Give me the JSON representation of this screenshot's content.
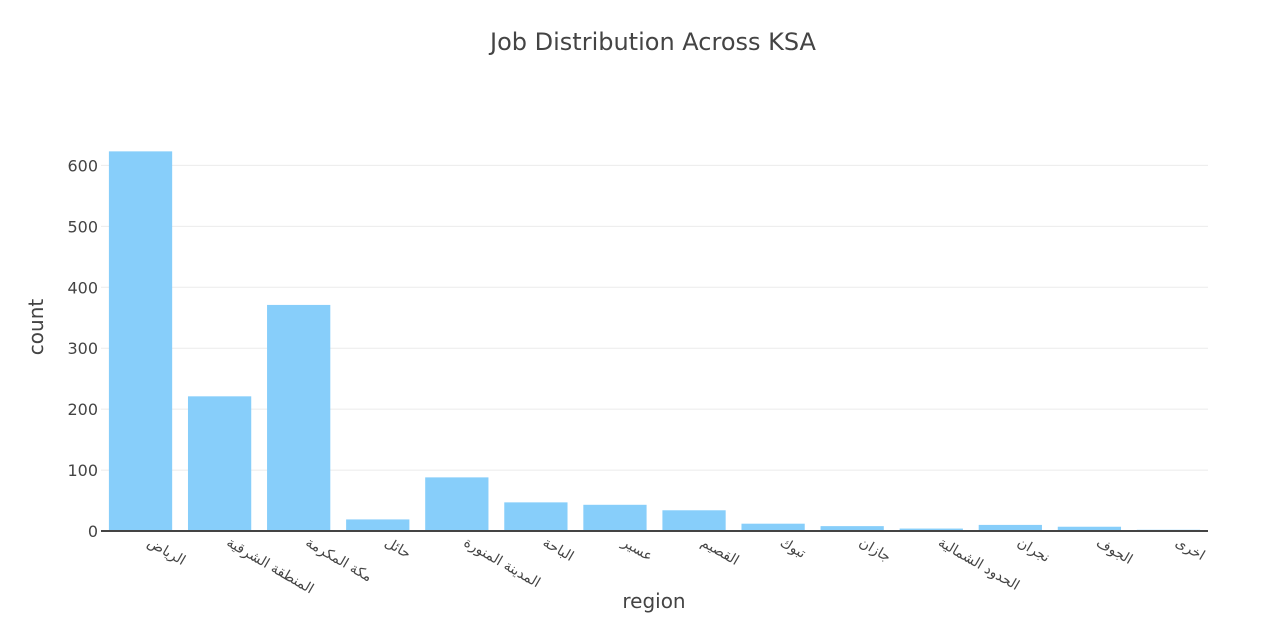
{
  "chart_data": {
    "type": "bar",
    "title": "Job Distribution Across KSA",
    "xlabel": "region",
    "ylabel": "count",
    "categories": [
      "الرياض",
      "المنطقة الشرقية",
      "مكة المكرمة",
      "حائل",
      "المدينة المنورة",
      "الباحة",
      "عسير",
      "القصيم",
      "تبوك",
      "جازان",
      "الحدود الشمالية",
      "نجران",
      "الجوف",
      "اخرى"
    ],
    "values": [
      623,
      221,
      371,
      19,
      88,
      47,
      43,
      34,
      12,
      8,
      4,
      10,
      7,
      2
    ],
    "ylim": [
      0,
      640
    ],
    "yticks": [
      0,
      100,
      200,
      300,
      400,
      500,
      600
    ],
    "grid": true,
    "legend": "none",
    "colors": {
      "bar": "#87CEFA",
      "grid": "#ebebeb",
      "axis_line": "#444444",
      "text": "#444444"
    }
  }
}
